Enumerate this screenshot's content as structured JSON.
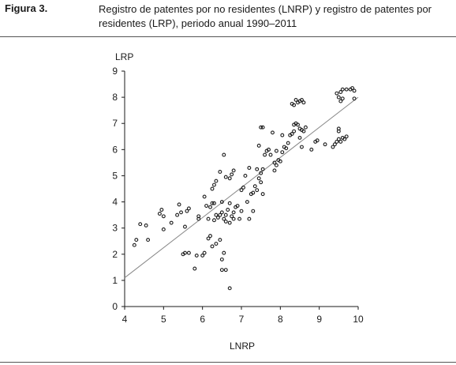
{
  "figure": {
    "label": "Figura 3.",
    "caption": "Registro de patentes por no residentes (LNRP) y registro de patentes por residentes (LRP), periodo anual 1990–2011"
  },
  "chart_data": {
    "type": "scatter",
    "title": "",
    "xlabel": "LNRP",
    "ylabel": "LRP",
    "xlim": [
      4,
      10
    ],
    "ylim": [
      0,
      9
    ],
    "xticks": [
      4,
      5,
      6,
      7,
      8,
      9,
      10
    ],
    "yticks": [
      0,
      1,
      2,
      3,
      4,
      5,
      6,
      7,
      8,
      9
    ],
    "grid": false,
    "legend": "none",
    "marker_color": "#1a1a1a",
    "line_color": "#888888",
    "fit_line": {
      "x": [
        4,
        10
      ],
      "y": [
        1.1,
        8.0
      ]
    },
    "points": [
      [
        4.25,
        2.35
      ],
      [
        4.3,
        2.55
      ],
      [
        4.4,
        3.15
      ],
      [
        4.55,
        3.1
      ],
      [
        4.6,
        2.55
      ],
      [
        4.9,
        3.55
      ],
      [
        4.95,
        3.7
      ],
      [
        5.0,
        2.95
      ],
      [
        5.0,
        3.45
      ],
      [
        5.2,
        3.2
      ],
      [
        5.35,
        3.5
      ],
      [
        5.4,
        3.9
      ],
      [
        5.45,
        3.6
      ],
      [
        5.55,
        3.05
      ],
      [
        5.6,
        3.65
      ],
      [
        5.65,
        3.75
      ],
      [
        5.9,
        3.35
      ],
      [
        5.9,
        3.45
      ],
      [
        5.5,
        2.0
      ],
      [
        5.55,
        2.05
      ],
      [
        5.65,
        2.05
      ],
      [
        5.8,
        1.45
      ],
      [
        5.85,
        1.95
      ],
      [
        6.0,
        1.95
      ],
      [
        6.05,
        2.05
      ],
      [
        6.05,
        4.2
      ],
      [
        6.1,
        3.85
      ],
      [
        6.15,
        2.6
      ],
      [
        6.2,
        2.7
      ],
      [
        6.15,
        3.35
      ],
      [
        6.2,
        3.8
      ],
      [
        6.25,
        3.95
      ],
      [
        6.3,
        3.95
      ],
      [
        6.25,
        4.5
      ],
      [
        6.3,
        4.65
      ],
      [
        6.35,
        4.8
      ],
      [
        6.3,
        3.3
      ],
      [
        6.35,
        3.5
      ],
      [
        6.25,
        2.3
      ],
      [
        6.35,
        2.4
      ],
      [
        6.45,
        2.55
      ],
      [
        6.5,
        1.8
      ],
      [
        6.5,
        1.4
      ],
      [
        6.55,
        2.05
      ],
      [
        6.6,
        1.4
      ],
      [
        6.7,
        0.7
      ],
      [
        6.45,
        5.15
      ],
      [
        6.55,
        5.8
      ],
      [
        6.6,
        4.95
      ],
      [
        6.7,
        4.9
      ],
      [
        6.75,
        5.05
      ],
      [
        6.8,
        5.2
      ],
      [
        6.5,
        3.6
      ],
      [
        6.55,
        3.35
      ],
      [
        6.6,
        3.5
      ],
      [
        6.65,
        3.7
      ],
      [
        6.7,
        3.95
      ],
      [
        6.75,
        3.45
      ],
      [
        6.8,
        3.6
      ],
      [
        6.85,
        3.8
      ],
      [
        6.9,
        3.85
      ],
      [
        6.95,
        3.35
      ],
      [
        7.0,
        3.65
      ],
      [
        6.6,
        3.25
      ],
      [
        6.7,
        3.2
      ],
      [
        6.8,
        3.35
      ],
      [
        6.5,
        4.0
      ],
      [
        6.45,
        3.5
      ],
      [
        6.4,
        3.4
      ],
      [
        7.0,
        4.45
      ],
      [
        7.05,
        4.55
      ],
      [
        7.1,
        5.0
      ],
      [
        7.2,
        5.3
      ],
      [
        7.25,
        4.3
      ],
      [
        7.3,
        4.35
      ],
      [
        7.35,
        4.6
      ],
      [
        7.4,
        4.45
      ],
      [
        7.45,
        4.9
      ],
      [
        7.5,
        5.1
      ],
      [
        7.4,
        5.25
      ],
      [
        7.55,
        5.25
      ],
      [
        7.5,
        4.75
      ],
      [
        7.55,
        4.3
      ],
      [
        7.3,
        3.65
      ],
      [
        7.2,
        3.35
      ],
      [
        7.15,
        4.0
      ],
      [
        7.45,
        6.15
      ],
      [
        7.5,
        6.85
      ],
      [
        7.55,
        6.85
      ],
      [
        7.6,
        5.8
      ],
      [
        7.65,
        5.95
      ],
      [
        7.7,
        6.0
      ],
      [
        7.8,
        6.65
      ],
      [
        7.85,
        5.5
      ],
      [
        7.85,
        5.2
      ],
      [
        7.9,
        5.4
      ],
      [
        7.95,
        5.6
      ],
      [
        8.0,
        5.55
      ],
      [
        8.05,
        5.9
      ],
      [
        8.1,
        6.1
      ],
      [
        8.15,
        6.05
      ],
      [
        8.2,
        6.25
      ],
      [
        8.25,
        6.55
      ],
      [
        8.3,
        6.6
      ],
      [
        8.35,
        6.7
      ],
      [
        8.35,
        6.95
      ],
      [
        8.4,
        7.0
      ],
      [
        8.45,
        6.95
      ],
      [
        8.5,
        6.8
      ],
      [
        8.55,
        6.75
      ],
      [
        8.6,
        6.7
      ],
      [
        8.65,
        6.85
      ],
      [
        8.5,
        6.45
      ],
      [
        8.55,
        6.1
      ],
      [
        8.3,
        7.75
      ],
      [
        8.35,
        7.7
      ],
      [
        8.4,
        7.9
      ],
      [
        8.45,
        7.8
      ],
      [
        8.5,
        7.85
      ],
      [
        8.55,
        7.9
      ],
      [
        8.6,
        7.8
      ],
      [
        8.8,
        6.0
      ],
      [
        8.9,
        6.3
      ],
      [
        8.95,
        6.35
      ],
      [
        9.15,
        6.2
      ],
      [
        9.35,
        6.1
      ],
      [
        9.4,
        6.2
      ],
      [
        9.45,
        6.3
      ],
      [
        9.5,
        6.4
      ],
      [
        9.55,
        6.3
      ],
      [
        9.6,
        6.45
      ],
      [
        9.65,
        6.4
      ],
      [
        9.7,
        6.5
      ],
      [
        9.5,
        6.7
      ],
      [
        9.5,
        6.8
      ],
      [
        9.45,
        8.15
      ],
      [
        9.5,
        8.0
      ],
      [
        9.55,
        8.2
      ],
      [
        9.6,
        8.3
      ],
      [
        9.7,
        8.3
      ],
      [
        9.8,
        8.3
      ],
      [
        9.85,
        8.35
      ],
      [
        9.9,
        8.25
      ],
      [
        9.9,
        7.95
      ],
      [
        9.55,
        7.85
      ],
      [
        9.6,
        7.95
      ],
      [
        8.05,
        6.55
      ],
      [
        7.9,
        5.95
      ],
      [
        7.75,
        5.8
      ]
    ]
  }
}
